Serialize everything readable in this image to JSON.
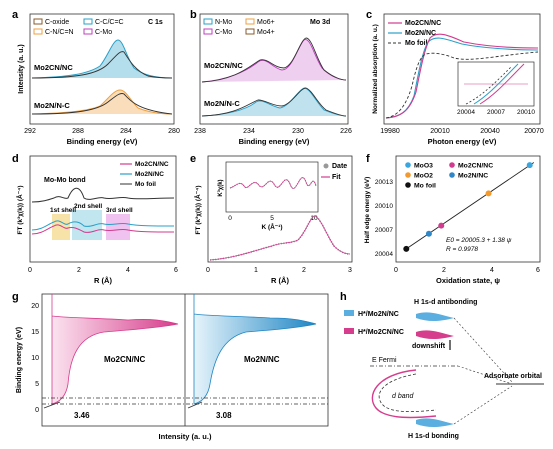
{
  "panels": {
    "a": {
      "letter": "a",
      "legend": [
        "C-oxide",
        "C-C/C=C",
        "C-N/C=N",
        "C-Mo"
      ],
      "tag": "C 1s",
      "samples": [
        "Mo2CN/NC",
        "Mo2N/N-C"
      ],
      "xlabel": "Binding energy (eV)",
      "ylabel": "Intensity (a. u.)",
      "xticks": [
        "292",
        "288",
        "284",
        "280"
      ]
    },
    "b": {
      "letter": "b",
      "legend": [
        "N-Mo",
        "Mo6+",
        "C-Mo",
        "Mo4+"
      ],
      "tag": "Mo 3d",
      "samples": [
        "Mo2CN/NC",
        "Mo2N/N-C"
      ],
      "xlabel": "Binding energy (eV)",
      "xticks": [
        "238",
        "234",
        "230",
        "226"
      ]
    },
    "c": {
      "letter": "c",
      "legend": [
        "Mo2CN/NC",
        "Mo2N/NC",
        "Mo foil"
      ],
      "xlabel": "Photon energy (eV)",
      "ylabel": "Normalized absorption (a. u.)",
      "xticks": [
        "19980",
        "20010",
        "20040",
        "20070"
      ],
      "inset_xticks": [
        "20004",
        "20007",
        "20010"
      ]
    },
    "d": {
      "letter": "d",
      "legend": [
        "Mo2CN/NC",
        "Mo2N/NC",
        "Mo foil"
      ],
      "annotations": [
        "Mo-Mo bond",
        "1st shell",
        "2nd shell",
        "3rd shell"
      ],
      "xlabel": "R (Å)",
      "ylabel": "FT (k³χ(k)) (Å⁻⁴)",
      "xticks": [
        "0",
        "2",
        "4",
        "6"
      ]
    },
    "e": {
      "letter": "e",
      "legend": [
        "Date",
        "Fit"
      ],
      "xlabel": "R (Å)",
      "ylabel": "FT (k³χ(k)) (Å⁻⁴)",
      "xticks": [
        "0",
        "1",
        "2",
        "3"
      ],
      "inset_xlabel": "K (Å⁻¹)",
      "inset_ylabel": "K³χ(k)",
      "inset_xticks": [
        "0",
        "5",
        "10"
      ]
    },
    "f": {
      "letter": "f",
      "legend": [
        "MoO3",
        "MoO2",
        "Mo2CN/NC",
        "Mo2N/NC",
        "Mo foil"
      ],
      "equation": "E0 = 20005.3 + 1.38 ψ",
      "r_value": "R = 0.9978",
      "xlabel": "Oxidation state, ψ",
      "ylabel": "Half edge energy (eV)",
      "xticks": [
        "0",
        "2",
        "4",
        "6"
      ],
      "yticks": [
        "20013",
        "20010",
        "20007",
        "20004"
      ]
    },
    "g": {
      "letter": "g",
      "ylabel": "Binding energy (eV)",
      "xlabel": "Intensity (a. u.)",
      "yticks": [
        "20",
        "15",
        "10",
        "5",
        "0"
      ],
      "left_label": "Mo2CN/NC",
      "right_label": "Mo2N/NC",
      "left_value": "3.46",
      "right_value": "3.08"
    },
    "h": {
      "letter": "h",
      "legend": [
        "H*/Mo2N/NC",
        "H*/Mo2CN/NC"
      ],
      "antibonding": "H 1s-d antibonding",
      "bonding": "H 1s-d bonding",
      "downshift": "downshift",
      "fermi": "E Fermi",
      "dband": "d band",
      "adsorbate": "Adsorbate orbital"
    }
  },
  "chart_data": [
    {
      "type": "scatter",
      "panel": "f",
      "xlabel": "Oxidation state, ψ",
      "ylabel": "Half edge energy (eV)",
      "xlim": [
        -0.5,
        6.5
      ],
      "ylim": [
        20004,
        20014.5
      ],
      "series": [
        {
          "name": "MoO3",
          "x": [
            6
          ],
          "y": [
            20013.6
          ],
          "color": "#3aa6e0"
        },
        {
          "name": "MoO2",
          "x": [
            4
          ],
          "y": [
            20010.8
          ],
          "color": "#f29a2e"
        },
        {
          "name": "Mo2CN/NC",
          "x": [
            1.7
          ],
          "y": [
            20007.6
          ],
          "color": "#d23b8f"
        },
        {
          "name": "Mo2N/NC",
          "x": [
            1.1
          ],
          "y": [
            20006.8
          ],
          "color": "#2f87c8"
        },
        {
          "name": "Mo foil",
          "x": [
            0
          ],
          "y": [
            20005.3
          ],
          "color": "#111111"
        }
      ],
      "fit": {
        "intercept": 20005.3,
        "slope": 1.38
      }
    }
  ]
}
